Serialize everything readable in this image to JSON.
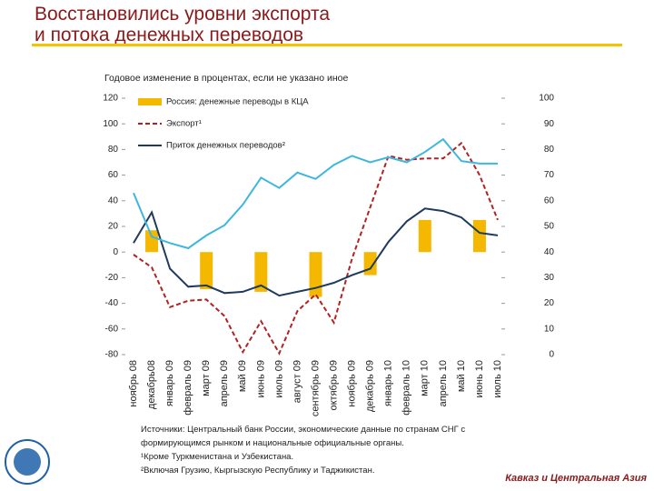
{
  "chart_data": {
    "type": "combo",
    "title": "Восстановились уровни экспорта\nи потока денежных переводов",
    "subtitle": "Годовое изменение в процентах, если не указано иное",
    "categories": [
      "ноябрь 08",
      "декабрь08",
      "январь 09",
      "февраль 09",
      "март 09",
      "апрель 09",
      "май 09",
      "июнь 09",
      "июль 09",
      "август 09",
      "сентябрь 09",
      "октябрь 09",
      "ноябрь 09",
      "декабрь 09",
      "январь 10",
      "февраль 10",
      "март 10",
      "апрель 10",
      "май 10",
      "июнь 10",
      "июль 10"
    ],
    "ylim": [
      -80,
      120
    ],
    "yticks": [
      -80,
      -60,
      -40,
      -20,
      0,
      20,
      40,
      60,
      80,
      100,
      120
    ],
    "y2lim": [
      0,
      100
    ],
    "y2ticks": [
      0,
      10,
      20,
      30,
      40,
      50,
      60,
      70,
      80,
      90,
      100
    ],
    "series": [
      {
        "name": "Россия: денежные переводы в КЦА",
        "kind": "bar",
        "color": "#f5b800",
        "values": [
          null,
          17,
          null,
          null,
          -29,
          null,
          null,
          -31,
          null,
          null,
          -35,
          null,
          null,
          -18,
          null,
          null,
          25,
          null,
          null,
          25,
          null
        ]
      },
      {
        "name": "Экспорт¹",
        "kind": "dashed",
        "color": "#b22222",
        "values": [
          -2,
          -12,
          -43,
          -38,
          -37,
          -50,
          -78,
          -54,
          -79,
          -46,
          -33,
          -55,
          -5,
          35,
          75,
          72,
          73,
          73,
          85,
          60,
          25
        ]
      },
      {
        "name": "Приток денежных переводов²",
        "kind": "line",
        "color": "#1f3a5f",
        "values": [
          7,
          31,
          -13,
          -27,
          -26,
          -32,
          -31,
          -26,
          -34,
          -31,
          -28,
          -24,
          -18,
          -13,
          8,
          24,
          34,
          32,
          27,
          15,
          13
        ]
      },
      {
        "kind": "line",
        "color": "#3fb6e0",
        "values": [
          46,
          12,
          7,
          3,
          13,
          21,
          37,
          58,
          50,
          62,
          57,
          68,
          75,
          70,
          74,
          70,
          78,
          88,
          71,
          69,
          69
        ]
      }
    ]
  },
  "notes": [
    "Источники: Центральный банк России, экономические данные по странам СНГ с",
    "формирующимся рынком и национальные официальные органы.",
    "¹Кроме Туркменистана и Узбекистана.",
    "²Включая Грузию, Кыргызскую Республику и Таджикистан."
  ],
  "footer": "Кавказ и Центральная Азия"
}
